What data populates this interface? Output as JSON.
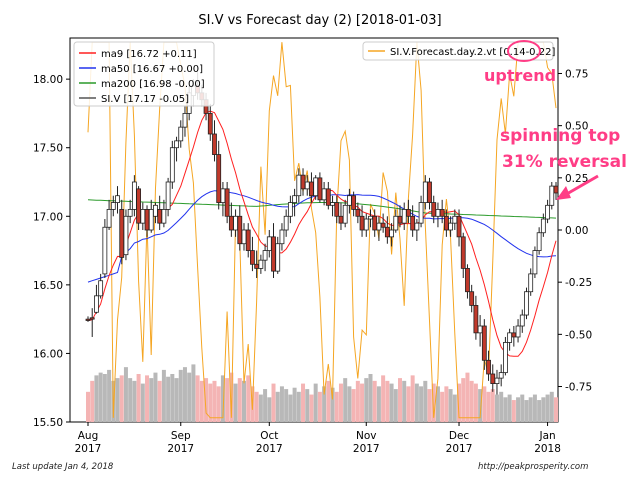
{
  "chart_data": {
    "type": "candlestick",
    "title": "SI.V vs Forecast day (2)  [2018-01-03]",
    "left_axis": {
      "ylim": [
        15.5,
        18.3
      ],
      "ticks": [
        15.5,
        16.0,
        16.5,
        17.0,
        17.5,
        18.0
      ],
      "tick_labels": [
        "15.50",
        "16.00",
        "16.50",
        "17.00",
        "17.50",
        "18.00"
      ]
    },
    "right_axis": {
      "ylim": [
        -0.92,
        0.92
      ],
      "ticks": [
        -0.75,
        -0.5,
        -0.25,
        0.0,
        0.25,
        0.5,
        0.75
      ],
      "tick_labels": [
        "-0.75",
        "-0.50",
        "-0.25",
        "0.00",
        "0.25",
        "0.50",
        "0.75"
      ]
    },
    "x_ticks": [
      {
        "line1": "Aug",
        "line2": "2017",
        "index": 0
      },
      {
        "line1": "Sep",
        "line2": "2017",
        "index": 22
      },
      {
        "line1": "Oct",
        "line2": "2017",
        "index": 43
      },
      {
        "line1": "Nov",
        "line2": "2017",
        "index": 66
      },
      {
        "line1": "Dec",
        "line2": "2017",
        "index": 88
      },
      {
        "line1": "Jan",
        "line2": "2018",
        "index": 109
      }
    ],
    "legend_left": [
      {
        "label": "ma9 [16.72 +0.11]",
        "color": "#ff2020"
      },
      {
        "label": "ma50 [16.67 +0.00]",
        "color": "#2233ee"
      },
      {
        "label": "ma200 [16.98 -0.00]",
        "color": "#2a9a2a"
      },
      {
        "label": "SI.V [17.17 -0.05]",
        "color": "#555555"
      }
    ],
    "legend_right": {
      "label_prefix": "SI.V.Forecast.day.2.vt [",
      "label_highlight": "0.14",
      "label_suffix": "-0.22]",
      "color": "#f5a623"
    },
    "candles": [
      [
        16.25,
        16.27,
        16.23,
        16.24
      ],
      [
        16.26,
        16.33,
        16.12,
        16.25
      ],
      [
        16.3,
        16.5,
        16.29,
        16.42
      ],
      [
        16.42,
        16.58,
        16.4,
        16.53
      ],
      [
        16.58,
        16.98,
        16.55,
        16.92
      ],
      [
        16.92,
        17.12,
        16.9,
        17.05
      ],
      [
        17.05,
        17.15,
        17.0,
        17.1
      ],
      [
        17.1,
        17.22,
        17.02,
        17.15
      ],
      [
        17.05,
        17.12,
        16.65,
        16.7
      ],
      [
        16.72,
        17.05,
        16.68,
        17.0
      ],
      [
        17.0,
        17.12,
        16.95,
        17.05
      ],
      [
        17.05,
        17.3,
        17.0,
        17.25
      ],
      [
        17.2,
        17.22,
        16.9,
        16.95
      ],
      [
        16.95,
        17.1,
        16.9,
        17.05
      ],
      [
        17.05,
        17.08,
        16.85,
        16.9
      ],
      [
        16.9,
        17.12,
        16.88,
        17.05
      ],
      [
        17.0,
        17.1,
        16.95,
        17.08
      ],
      [
        17.05,
        17.15,
        16.9,
        16.95
      ],
      [
        16.95,
        17.12,
        16.92,
        17.05
      ],
      [
        17.05,
        17.28,
        17.0,
        17.25
      ],
      [
        17.25,
        17.55,
        17.2,
        17.5
      ],
      [
        17.5,
        17.58,
        17.4,
        17.55
      ],
      [
        17.55,
        17.7,
        17.5,
        17.65
      ],
      [
        17.65,
        17.8,
        17.58,
        17.75
      ],
      [
        17.75,
        17.95,
        17.7,
        17.9
      ],
      [
        17.88,
        18.0,
        17.8,
        17.95
      ],
      [
        17.95,
        18.05,
        17.85,
        17.9
      ],
      [
        17.9,
        17.96,
        17.8,
        17.85
      ],
      [
        17.85,
        17.9,
        17.7,
        17.75
      ],
      [
        17.75,
        17.82,
        17.55,
        17.6
      ],
      [
        17.6,
        17.7,
        17.4,
        17.45
      ],
      [
        17.45,
        17.55,
        17.05,
        17.1
      ],
      [
        17.1,
        17.25,
        17.0,
        17.2
      ],
      [
        17.2,
        17.25,
        16.95,
        17.0
      ],
      [
        17.0,
        17.1,
        16.85,
        16.9
      ],
      [
        16.9,
        17.05,
        16.85,
        17.0
      ],
      [
        17.0,
        17.08,
        16.75,
        16.8
      ],
      [
        16.8,
        16.95,
        16.75,
        16.9
      ],
      [
        16.9,
        16.95,
        16.7,
        16.75
      ],
      [
        16.75,
        16.85,
        16.6,
        16.65
      ],
      [
        16.65,
        16.75,
        16.55,
        16.62
      ],
      [
        16.62,
        16.72,
        16.58,
        16.68
      ],
      [
        16.68,
        16.8,
        16.6,
        16.75
      ],
      [
        16.75,
        16.9,
        16.7,
        16.85
      ],
      [
        16.85,
        16.95,
        16.55,
        16.6
      ],
      [
        16.6,
        16.85,
        16.58,
        16.8
      ],
      [
        16.8,
        16.95,
        16.75,
        16.9
      ],
      [
        16.9,
        17.05,
        16.85,
        17.0
      ],
      [
        17.0,
        17.15,
        16.95,
        17.1
      ],
      [
        17.1,
        17.2,
        17.0,
        17.15
      ],
      [
        17.15,
        17.35,
        17.1,
        17.3
      ],
      [
        17.3,
        17.35,
        17.15,
        17.2
      ],
      [
        17.2,
        17.3,
        17.15,
        17.25
      ],
      [
        17.25,
        17.32,
        17.1,
        17.15
      ],
      [
        17.15,
        17.3,
        17.12,
        17.28
      ],
      [
        17.28,
        17.32,
        17.1,
        17.12
      ],
      [
        17.12,
        17.25,
        17.08,
        17.2
      ],
      [
        17.2,
        17.25,
        17.05,
        17.08
      ],
      [
        17.08,
        17.15,
        17.0,
        17.1
      ],
      [
        17.1,
        17.15,
        16.95,
        17.0
      ],
      [
        17.0,
        17.1,
        16.9,
        16.95
      ],
      [
        16.95,
        17.12,
        16.92,
        17.08
      ],
      [
        17.08,
        17.2,
        17.02,
        17.15
      ],
      [
        17.15,
        17.18,
        17.0,
        17.05
      ],
      [
        17.05,
        17.1,
        16.95,
        17.0
      ],
      [
        17.0,
        17.08,
        16.85,
        16.9
      ],
      [
        16.9,
        17.02,
        16.85,
        16.98
      ],
      [
        16.98,
        17.05,
        16.92,
        17.0
      ],
      [
        17.0,
        17.05,
        16.85,
        16.9
      ],
      [
        16.9,
        17.0,
        16.82,
        16.95
      ],
      [
        16.95,
        17.02,
        16.88,
        16.92
      ],
      [
        16.92,
        17.0,
        16.8,
        16.85
      ],
      [
        16.85,
        16.95,
        16.78,
        16.9
      ],
      [
        16.9,
        17.05,
        16.88,
        17.0
      ],
      [
        17.0,
        17.08,
        16.92,
        16.95
      ],
      [
        16.95,
        17.1,
        16.9,
        17.05
      ],
      [
        17.05,
        17.12,
        16.95,
        17.0
      ],
      [
        17.0,
        17.08,
        16.85,
        16.9
      ],
      [
        16.9,
        16.98,
        16.82,
        16.95
      ],
      [
        16.95,
        17.15,
        16.92,
        17.1
      ],
      [
        17.1,
        17.3,
        17.05,
        17.25
      ],
      [
        17.25,
        17.28,
        17.05,
        17.1
      ],
      [
        17.1,
        17.15,
        16.95,
        17.0
      ],
      [
        17.0,
        17.1,
        16.92,
        17.05
      ],
      [
        17.05,
        17.12,
        16.95,
        17.0
      ],
      [
        17.0,
        17.05,
        16.85,
        16.9
      ],
      [
        16.9,
        17.0,
        16.85,
        16.95
      ],
      [
        16.95,
        17.05,
        16.9,
        17.0
      ],
      [
        17.0,
        17.05,
        16.78,
        16.85
      ],
      [
        16.85,
        16.88,
        16.55,
        16.62
      ],
      [
        16.62,
        16.65,
        16.4,
        16.45
      ],
      [
        16.45,
        16.5,
        16.3,
        16.35
      ],
      [
        16.35,
        16.42,
        16.1,
        16.15
      ],
      [
        16.15,
        16.28,
        16.05,
        16.2
      ],
      [
        16.2,
        16.25,
        15.88,
        15.95
      ],
      [
        15.95,
        16.02,
        15.8,
        15.85
      ],
      [
        15.85,
        15.92,
        15.72,
        15.78
      ],
      [
        15.78,
        15.88,
        15.7,
        15.82
      ],
      [
        15.82,
        15.92,
        15.76,
        15.86
      ],
      [
        15.86,
        16.12,
        15.84,
        16.08
      ],
      [
        16.08,
        16.18,
        16.02,
        16.15
      ],
      [
        16.15,
        16.2,
        16.05,
        16.12
      ],
      [
        16.12,
        16.25,
        16.08,
        16.2
      ],
      [
        16.2,
        16.32,
        16.15,
        16.28
      ],
      [
        16.28,
        16.48,
        16.25,
        16.45
      ],
      [
        16.45,
        16.62,
        16.42,
        16.58
      ],
      [
        16.58,
        16.78,
        16.55,
        16.75
      ],
      [
        16.75,
        16.92,
        16.72,
        16.88
      ],
      [
        16.88,
        17.02,
        16.85,
        16.98
      ],
      [
        16.98,
        17.12,
        16.95,
        17.08
      ],
      [
        17.08,
        17.25,
        17.05,
        17.22
      ],
      [
        17.22,
        17.25,
        17.12,
        17.17
      ]
    ],
    "volume": [
      15.72,
      15.8,
      15.84,
      15.86,
      15.85,
      15.88,
      15.8,
      15.82,
      15.84,
      15.9,
      15.82,
      15.8,
      15.85,
      15.78,
      15.84,
      15.82,
      15.86,
      15.8,
      15.88,
      15.83,
      15.85,
      15.82,
      15.88,
      15.9,
      15.86,
      15.92,
      15.84,
      15.8,
      15.82,
      15.78,
      15.8,
      15.76,
      15.84,
      15.82,
      15.86,
      15.78,
      15.82,
      15.8,
      15.84,
      15.76,
      15.72,
      15.7,
      15.74,
      15.68,
      15.78,
      15.72,
      15.76,
      15.74,
      15.7,
      15.75,
      15.72,
      15.78,
      15.74,
      15.7,
      15.78,
      15.72,
      15.76,
      15.8,
      15.75,
      15.72,
      15.78,
      15.82,
      15.76,
      15.74,
      15.8,
      15.78,
      15.82,
      15.85,
      15.8,
      15.76,
      15.84,
      15.8,
      15.78,
      15.74,
      15.82,
      15.8,
      15.76,
      15.84,
      15.78,
      15.76,
      15.8,
      15.74,
      15.78,
      15.76,
      15.72,
      15.76,
      15.74,
      15.7,
      15.78,
      15.82,
      15.86,
      15.8,
      15.78,
      15.74,
      15.76,
      15.72,
      15.74,
      15.7,
      15.72,
      15.68,
      15.7,
      15.66,
      15.68,
      15.7,
      15.66,
      15.68,
      15.7,
      15.66,
      15.68,
      15.7,
      15.72,
      15.68
    ],
    "annotations": {
      "uptrend": "uptrend",
      "pattern_line1": "spinning top",
      "pattern_line2": "31% reversal"
    }
  },
  "footer": {
    "left": "Last update Jan  4, 2018",
    "right": "http://peakprosperity.com"
  }
}
